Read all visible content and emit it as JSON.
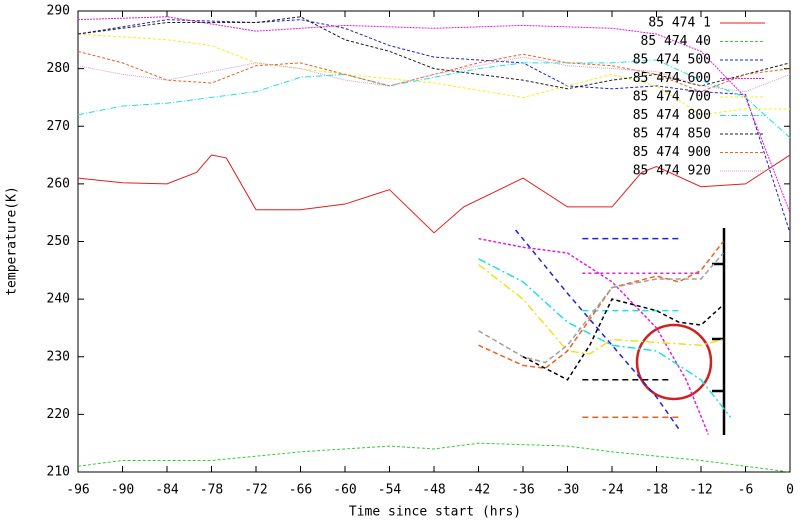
{
  "chart_data": {
    "type": "line",
    "xlabel": "Time since start (hrs)",
    "ylabel": "temperature(K)",
    "xlim": [
      -96,
      0
    ],
    "ylim": [
      210,
      290
    ],
    "xticks": [
      -96,
      -90,
      -84,
      -78,
      -72,
      -66,
      -60,
      -54,
      -48,
      -42,
      -36,
      -30,
      -24,
      -18,
      -12,
      -6,
      0
    ],
    "yticks": [
      210,
      220,
      230,
      240,
      250,
      260,
      270,
      280,
      290
    ],
    "grid": false,
    "legend": "top-right",
    "series": [
      {
        "name": "85 474 1",
        "color": "#e02020",
        "dash": "none",
        "x": [
          -96,
          -90,
          -84,
          -80,
          -78,
          -76,
          -72,
          -66,
          -60,
          -54,
          -48,
          -44,
          -36,
          -30,
          -24,
          -20,
          -18,
          -12,
          -6,
          0
        ],
        "values": [
          261,
          260.2,
          260,
          262,
          265,
          264.5,
          255.5,
          255.5,
          256.5,
          259,
          251.5,
          256,
          261,
          256,
          256,
          262,
          263,
          259.5,
          260,
          265
        ]
      },
      {
        "name": "85 474 40",
        "color": "#30d030",
        "dash": "3,2",
        "x": [
          -96,
          -90,
          -78,
          -66,
          -54,
          -48,
          -42,
          -30,
          -24,
          -12,
          -6,
          0
        ],
        "values": [
          211,
          212,
          212,
          213.5,
          214.5,
          214,
          215,
          214.5,
          213.5,
          212,
          211,
          210
        ]
      },
      {
        "name": "85 474 500",
        "color": "#2020c0",
        "dash": "3,2",
        "x": [
          -96,
          -84,
          -72,
          -66,
          -60,
          -54,
          -48,
          -36,
          -30,
          -24,
          -18,
          -12,
          -6,
          0
        ],
        "values": [
          286,
          288.5,
          288,
          288.5,
          287,
          284,
          282,
          281,
          277,
          276.5,
          277,
          276,
          275.5,
          251.5
        ]
      },
      {
        "name": "85 474 600",
        "color": "#e020e0",
        "dash": "2,1",
        "x": [
          -96,
          -84,
          -72,
          -60,
          -48,
          -36,
          -24,
          -18,
          -12,
          -6,
          0
        ],
        "values": [
          288.5,
          289,
          286.5,
          287.5,
          287,
          287.5,
          287,
          286,
          283,
          275,
          255
        ]
      },
      {
        "name": "85 474 700",
        "color": "#f0f020",
        "dash": "3,2",
        "x": [
          -96,
          -84,
          -78,
          -72,
          -60,
          -48,
          -36,
          -24,
          -18,
          -12,
          -6,
          0
        ],
        "values": [
          286,
          285,
          284,
          281,
          279,
          277.5,
          275,
          279,
          277,
          272,
          273,
          273
        ]
      },
      {
        "name": "85 474 800",
        "color": "#20e0e0",
        "dash": "6,2,1,2",
        "x": [
          -96,
          -90,
          -84,
          -72,
          -66,
          -60,
          -54,
          -48,
          -42,
          -36,
          -24,
          -18,
          -12,
          -6,
          0
        ],
        "values": [
          272,
          273.5,
          274,
          276,
          278.5,
          279,
          277,
          278.5,
          280,
          281,
          281,
          281.5,
          278,
          275,
          268
        ]
      },
      {
        "name": "85 474 850",
        "color": "#202020",
        "dash": "3,2",
        "x": [
          -96,
          -84,
          -72,
          -66,
          -60,
          -54,
          -48,
          -36,
          -30,
          -24,
          -18,
          -12,
          -6,
          0
        ],
        "values": [
          286,
          288,
          288,
          289,
          285,
          283,
          280,
          278,
          276.5,
          278,
          279,
          277,
          279,
          281
        ]
      },
      {
        "name": "85 474 900",
        "color": "#f06020",
        "dash": "3,2",
        "x": [
          -96,
          -90,
          -84,
          -78,
          -72,
          -66,
          -60,
          -54,
          -48,
          -42,
          -36,
          -30,
          -24,
          -18,
          -12,
          -6,
          0
        ],
        "values": [
          283,
          281,
          278,
          277.5,
          280.5,
          281,
          279,
          277,
          279,
          281,
          282.5,
          281,
          280.5,
          279,
          276,
          279,
          280
        ]
      },
      {
        "name": "85 474 920",
        "color": "#d0a0d0",
        "dash": "1,1",
        "x": [
          -96,
          -90,
          -84,
          -78,
          -72,
          -66,
          -60,
          -54,
          -48,
          -42,
          -36,
          -30,
          -24,
          -18,
          -12,
          -6,
          0
        ],
        "values": [
          280.5,
          279,
          278,
          279.5,
          281,
          280,
          278,
          277,
          279,
          280.5,
          282,
          280.5,
          280,
          279.5,
          277,
          276,
          279
        ]
      }
    ],
    "overlay": [
      {
        "color": "#2020e0",
        "dash": "6,4",
        "x": [
          -28,
          -15
        ],
        "values": [
          250.5,
          250.5
        ]
      },
      {
        "color": "#e020e0",
        "dash": "3,3",
        "x": [
          -28,
          -12
        ],
        "values": [
          244.5,
          244.5
        ]
      },
      {
        "color": "#20e0e0",
        "dash": "6,4",
        "x": [
          -28,
          -15
        ],
        "values": [
          238,
          238
        ]
      },
      {
        "color": "#000000",
        "dash": "6,4",
        "x": [
          -28,
          -16
        ],
        "values": [
          226,
          226
        ]
      },
      {
        "color": "#f06020",
        "dash": "6,4",
        "x": [
          -28,
          -15
        ],
        "values": [
          219.5,
          219.5
        ]
      },
      {
        "color": "#2020e0",
        "dash": "5,4",
        "x": [
          -37,
          -30,
          -24,
          -18,
          -15
        ],
        "values": [
          252,
          241,
          232,
          223,
          217.5
        ]
      },
      {
        "color": "#e020e0",
        "dash": "3,2",
        "x": [
          -42,
          -36,
          -30,
          -24,
          -18,
          -14,
          -11
        ],
        "values": [
          250.5,
          249,
          248,
          243,
          235,
          226,
          216.5
        ]
      },
      {
        "color": "#20e0e0",
        "dash": "8,3,2,3",
        "x": [
          -42,
          -36,
          -30,
          -24,
          -18,
          -12,
          -8
        ],
        "values": [
          247,
          243,
          236,
          232,
          231,
          226,
          219.5
        ]
      },
      {
        "color": "#f0e020",
        "dash": "8,3,2,3",
        "x": [
          -42,
          -36,
          -30,
          -27,
          -24,
          -18,
          -12,
          -9
        ],
        "values": [
          246,
          240,
          231,
          230.5,
          233,
          232.5,
          232,
          233
        ]
      },
      {
        "color": "#f06020",
        "dash": "5,3",
        "x": [
          -42,
          -36,
          -33,
          -30,
          -24,
          -18,
          -15,
          -12,
          -9
        ],
        "values": [
          232,
          228.5,
          228,
          231,
          242,
          244,
          243,
          245,
          250
        ]
      },
      {
        "color": "#a0a0a0",
        "dash": "5,3",
        "x": [
          -42,
          -36,
          -33,
          -30,
          -24,
          -18,
          -12,
          -9
        ],
        "values": [
          234.5,
          230,
          229,
          232,
          242,
          243.5,
          243.5,
          248
        ]
      },
      {
        "color": "#000000",
        "dash": "4,3",
        "x": [
          -36,
          -30,
          -27,
          -24,
          -18,
          -15,
          -12,
          -9
        ],
        "values": [
          230,
          226,
          232,
          240,
          238,
          236,
          235.5,
          239
        ]
      }
    ]
  }
}
